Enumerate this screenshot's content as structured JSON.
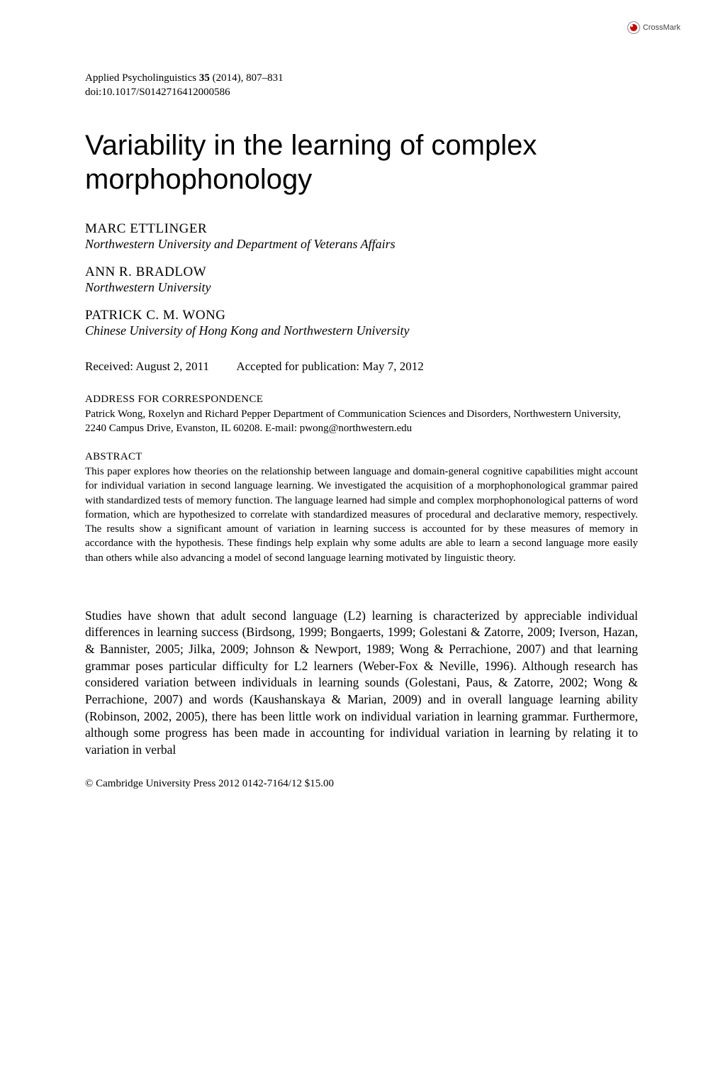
{
  "crossmark": {
    "label": "CrossMark"
  },
  "journal": {
    "citation": "Applied Psycholinguistics 35 (2014), 807–831",
    "doi": "doi:10.1017/S0142716412000586"
  },
  "title": "Variability in the learning of complex morphophonology",
  "authors": [
    {
      "name": "MARC ETTLINGER",
      "affiliation": "Northwestern University and Department of Veterans Affairs"
    },
    {
      "name": "ANN R. BRADLOW",
      "affiliation": "Northwestern University"
    },
    {
      "name": "PATRICK C. M. WONG",
      "affiliation": "Chinese University of Hong Kong and Northwestern University"
    }
  ],
  "dates": {
    "received": "Received: August 2, 2011",
    "accepted": "Accepted for publication: May 7, 2012"
  },
  "correspondence": {
    "header": "ADDRESS FOR CORRESPONDENCE",
    "body": "Patrick Wong, Roxelyn and Richard Pepper Department of Communication Sciences and Disorders, Northwestern University, 2240 Campus Drive, Evanston, IL 60208. E-mail: pwong@northwestern.edu"
  },
  "abstract": {
    "header": "ABSTRACT",
    "body": "This paper explores how theories on the relationship between language and domain-general cognitive capabilities might account for individual variation in second language learning. We investigated the acquisition of a morphophonological grammar paired with standardized tests of memory function. The language learned had simple and complex morphophonological patterns of word formation, which are hypothesized to correlate with standardized measures of procedural and declarative memory, respectively. The results show a significant amount of variation in learning success is accounted for by these measures of memory in accordance with the hypothesis. These findings help explain why some adults are able to learn a second language more easily than others while also advancing a model of second language learning motivated by linguistic theory."
  },
  "body": "Studies have shown that adult second language (L2) learning is characterized by appreciable individual differences in learning success (Birdsong, 1999; Bongaerts, 1999; Golestani & Zatorre, 2009; Iverson, Hazan, & Bannister, 2005; Jilka, 2009; Johnson & Newport, 1989; Wong & Perrachione, 2007) and that learning grammar poses particular difficulty for L2 learners (Weber-Fox & Neville, 1996). Although research has considered variation between individuals in learning sounds (Golestani, Paus, & Zatorre, 2002; Wong & Perrachione, 2007) and words (Kaushanskaya & Marian, 2009) and in overall language learning ability (Robinson, 2002, 2005), there has been little work on individual variation in learning grammar. Furthermore, although some progress has been made in accounting for individual variation in learning by relating it to variation in verbal",
  "copyright": "© Cambridge University Press 2012 0142-7164/12 $15.00"
}
